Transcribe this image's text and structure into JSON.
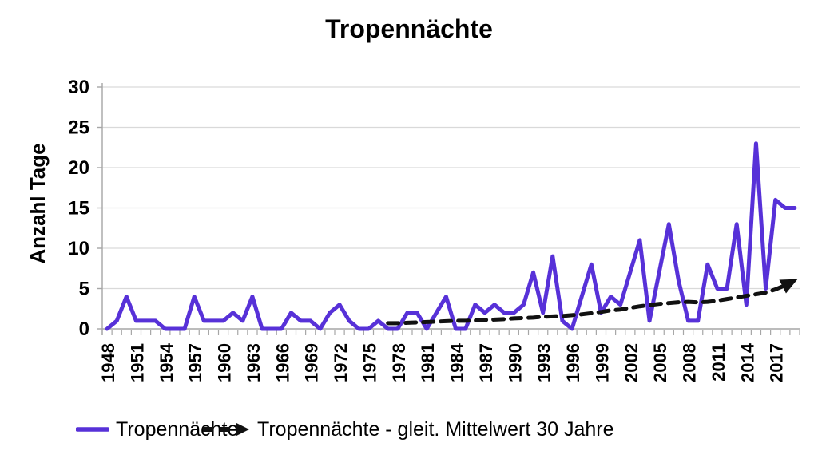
{
  "title": "Tropennächte",
  "y_axis": {
    "label": "Anzahl Tage",
    "ticks": [
      0,
      5,
      10,
      15,
      20,
      25,
      30
    ]
  },
  "x_axis": {
    "start_year": 1948,
    "end_year": 2019,
    "label_years": [
      1948,
      1951,
      1954,
      1957,
      1960,
      1963,
      1966,
      1969,
      1972,
      1975,
      1978,
      1981,
      1984,
      1987,
      1990,
      1993,
      1996,
      1999,
      2002,
      2005,
      2008,
      2011,
      2014,
      2017
    ]
  },
  "legend": {
    "items": [
      {
        "label": "Tropennächte",
        "swatch": "solid-line"
      },
      {
        "label": "Tropennächte - gleit. Mittelwert 30 Jahre",
        "swatch": "dashed-arrow"
      }
    ]
  },
  "colors": {
    "series": "#5731D8",
    "moving_average": "#111111",
    "grid": "#D9D9D9",
    "axis": "#A6A6A6",
    "text": "#000000"
  },
  "chart_data": {
    "type": "line",
    "title": "Tropennächte",
    "xlabel": "",
    "ylabel": "Anzahl Tage",
    "ylim": [
      0,
      30
    ],
    "grid": "horizontal",
    "legend_position": "bottom",
    "x_start_year": 1948,
    "x_end_year": 2019,
    "series": [
      {
        "name": "Tropennächte",
        "style": "solid",
        "x_start": 1948,
        "values": [
          0,
          1,
          4,
          1,
          1,
          1,
          0,
          0,
          0,
          4,
          1,
          1,
          1,
          2,
          1,
          4,
          0,
          0,
          0,
          2,
          1,
          1,
          0,
          2,
          3,
          1,
          0,
          0,
          1,
          0,
          0,
          2,
          2,
          0,
          2,
          4,
          0,
          0,
          3,
          2,
          3,
          2,
          2,
          3,
          7,
          2,
          9,
          1,
          0,
          4,
          8,
          2,
          4,
          3,
          7,
          11,
          1,
          7,
          13,
          6,
          1,
          1,
          8,
          5,
          5,
          13,
          3,
          23,
          5,
          16,
          15,
          15
        ]
      },
      {
        "name": "Tropennächte - gleit. Mittelwert 30 Jahre",
        "style": "dashed-arrow",
        "x_start": 1977,
        "values": [
          0.7,
          0.7,
          0.75,
          0.8,
          0.85,
          0.9,
          0.95,
          1,
          1,
          1.05,
          1.1,
          1.15,
          1.2,
          1.3,
          1.35,
          1.4,
          1.5,
          1.55,
          1.6,
          1.7,
          1.8,
          1.95,
          2.1,
          2.3,
          2.4,
          2.6,
          2.8,
          2.95,
          3.1,
          3.2,
          3.3,
          3.35,
          3.3,
          3.35,
          3.5,
          3.7,
          3.9,
          4.1,
          4.3,
          4.5,
          4.9,
          5.4,
          6
        ]
      }
    ]
  }
}
